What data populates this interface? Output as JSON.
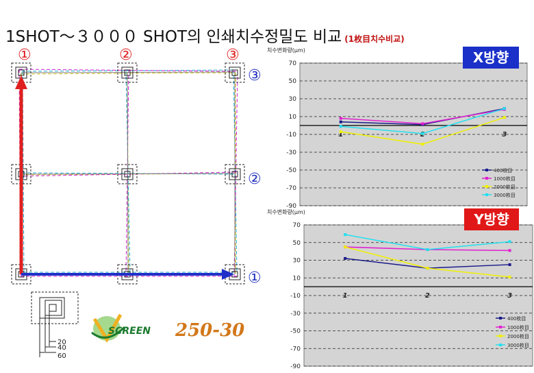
{
  "title": {
    "main": "1SHOT～３０００ SHOT의 인쇄치수정밀도 비교",
    "sub": "(1枚目치수비교)"
  },
  "grid_diagram": {
    "column_markers": [
      "①",
      "②",
      "③"
    ],
    "row_markers": [
      "③",
      "②",
      "①"
    ],
    "marker_colors": {
      "column": "#e02020",
      "row": "#2030c0",
      "x_axis_arrow": "#2030c8",
      "y_axis_arrow": "#e02020"
    },
    "line_colors": [
      "#d8c020",
      "#20b0d0",
      "#d020d0",
      "#808080"
    ],
    "inset_dims": [
      "20",
      "40",
      "60"
    ]
  },
  "logo": {
    "brand": "SCREEN",
    "model": "250-30",
    "brand_color": "#1b7a2e",
    "model_color": "#d2781a"
  },
  "tags": {
    "x": "X방향",
    "y": "Y방향"
  },
  "chart_data": [
    {
      "type": "line",
      "title": "X방향",
      "ylabel": "치수변화량(μm)",
      "categories": [
        "1",
        "2",
        "3"
      ],
      "ylim": [
        -90,
        70
      ],
      "yticks": [
        70,
        50,
        30,
        10,
        -10,
        -30,
        -50,
        -70,
        -90
      ],
      "grid": true,
      "legend_position": "bottom-right",
      "series": [
        {
          "name": "400枚目",
          "color": "#1a1a8a",
          "values": [
            4,
            1,
            19
          ]
        },
        {
          "name": "1000枚目",
          "color": "#e020d0",
          "values": [
            8,
            2,
            18
          ]
        },
        {
          "name": "2000枚目",
          "color": "#f0f000",
          "values": [
            -7,
            -21,
            9
          ]
        },
        {
          "name": "3000枚目",
          "color": "#20e0f0",
          "values": [
            -1,
            -9,
            19
          ]
        }
      ]
    },
    {
      "type": "line",
      "title": "Y방향",
      "ylabel": "치수변화량(μm)",
      "categories": [
        "1",
        "2",
        "3"
      ],
      "ylim": [
        -90,
        70
      ],
      "yticks": [
        70,
        50,
        30,
        10,
        -10,
        -30,
        -50,
        -70,
        -90
      ],
      "grid": true,
      "legend_position": "bottom-right",
      "series": [
        {
          "name": "400枚目",
          "color": "#1a1a8a",
          "values": [
            32,
            21,
            25
          ]
        },
        {
          "name": "1000枚目",
          "color": "#e020d0",
          "values": [
            45,
            42,
            41
          ]
        },
        {
          "name": "2000枚目",
          "color": "#f0f000",
          "values": [
            45,
            21,
            11
          ]
        },
        {
          "name": "3000枚目",
          "color": "#20e0f0",
          "values": [
            59,
            42,
            51
          ]
        }
      ]
    }
  ]
}
